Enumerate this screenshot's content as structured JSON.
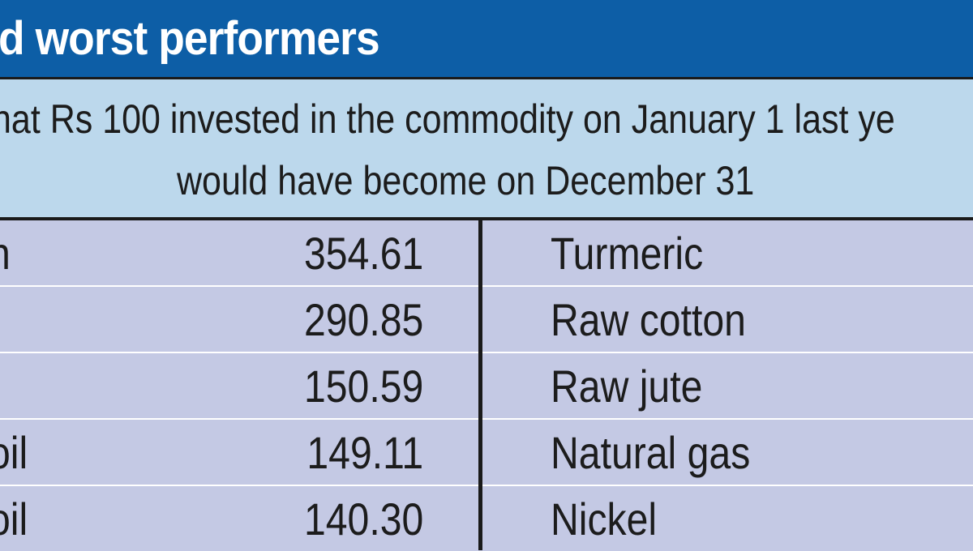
{
  "title": "d worst performers",
  "subtitle": {
    "line1": "hat Rs 100 invested in the commodity on January 1 last ye",
    "line2": "would have become on December 31"
  },
  "colors": {
    "title_bg": "#0d5ea6",
    "subtitle_bg": "#bcd8ec",
    "row_bg": "#c4c9e4",
    "rule": "#1a1a1a"
  },
  "table": {
    "rows": [
      {
        "best_name": "n",
        "best_value": "354.61",
        "worst_name": "Turmeric"
      },
      {
        "best_name": "",
        "best_value": "290.85",
        "worst_name": "Raw cotton"
      },
      {
        "best_name": "",
        "best_value": "150.59",
        "worst_name": "Raw jute"
      },
      {
        "best_name": "oil",
        "best_value": "149.11",
        "worst_name": "Natural gas"
      },
      {
        "best_name": "oil",
        "best_value": "140.30",
        "worst_name": "Nickel"
      }
    ]
  }
}
